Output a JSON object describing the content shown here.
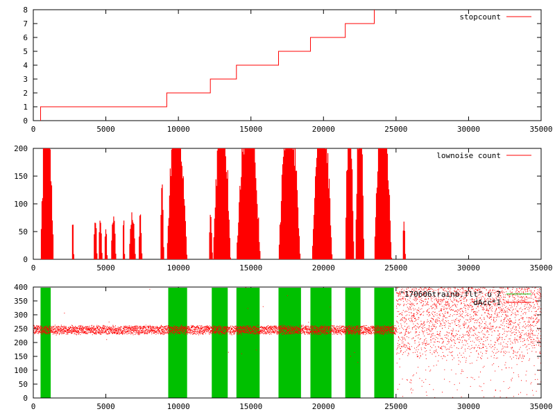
{
  "chart_data": [
    {
      "type": "line",
      "xlim": [
        0,
        35000
      ],
      "ylim": [
        0,
        8
      ],
      "xticks": [
        "0",
        "5000",
        "10000",
        "15000",
        "20000",
        "25000",
        "30000",
        "35000"
      ],
      "yticks": [
        "0",
        "1",
        "2",
        "3",
        "4",
        "5",
        "6",
        "7",
        "8"
      ],
      "legend_position": "top-right",
      "series": [
        {
          "name": "stopcount",
          "color": "#ff0000",
          "style": "step",
          "x": [
            500,
            500,
            9200,
            9200,
            12200,
            12200,
            14000,
            14000,
            16900,
            16900,
            19100,
            19100,
            21500,
            21500,
            23500,
            23500
          ],
          "y": [
            0,
            1,
            1,
            2,
            2,
            3,
            3,
            4,
            4,
            5,
            5,
            6,
            6,
            7,
            7,
            8
          ]
        }
      ]
    },
    {
      "type": "bar",
      "xlim": [
        0,
        35000
      ],
      "ylim": [
        0,
        200
      ],
      "xticks": [
        "0",
        "5000",
        "10000",
        "15000",
        "20000",
        "25000",
        "30000",
        "35000"
      ],
      "yticks": [
        "0",
        "50",
        "100",
        "150",
        "200"
      ],
      "legend_position": "top-right",
      "series": [
        {
          "name": "lownoise count",
          "color": "#ff0000",
          "spans": [
            {
              "x0": 500,
              "x1": 1400,
              "peak": 200
            },
            {
              "x0": 2650,
              "x1": 2800,
              "peak": 72
            },
            {
              "x0": 4150,
              "x1": 4400,
              "peak": 75
            },
            {
              "x0": 4500,
              "x1": 4750,
              "peak": 75
            },
            {
              "x0": 4900,
              "x1": 5100,
              "peak": 60
            },
            {
              "x0": 5350,
              "x1": 5700,
              "peak": 77
            },
            {
              "x0": 6150,
              "x1": 6300,
              "peak": 70
            },
            {
              "x0": 6600,
              "x1": 7050,
              "peak": 78
            },
            {
              "x0": 7250,
              "x1": 7500,
              "peak": 77
            },
            {
              "x0": 8750,
              "x1": 9000,
              "peak": 145
            },
            {
              "x0": 9200,
              "x1": 10600,
              "peak": 200
            },
            {
              "x0": 12100,
              "x1": 12350,
              "peak": 80
            },
            {
              "x0": 12400,
              "x1": 13600,
              "peak": 200
            },
            {
              "x0": 14000,
              "x1": 15650,
              "peak": 200
            },
            {
              "x0": 16900,
              "x1": 18400,
              "peak": 200
            },
            {
              "x0": 19200,
              "x1": 20600,
              "peak": 200
            },
            {
              "x0": 21500,
              "x1": 22100,
              "peak": 200
            },
            {
              "x0": 22200,
              "x1": 22800,
              "peak": 200
            },
            {
              "x0": 23500,
              "x1": 24700,
              "peak": 200
            },
            {
              "x0": 25450,
              "x1": 25650,
              "peak": 70
            }
          ]
        }
      ]
    },
    {
      "type": "scatter",
      "xlim": [
        0,
        35000
      ],
      "ylim": [
        0,
        400
      ],
      "xticks": [
        "0",
        "5000",
        "10000",
        "15000",
        "20000",
        "25000",
        "30000",
        "35000"
      ],
      "yticks": [
        "0",
        "50",
        "100",
        "150",
        "200",
        "250",
        "300",
        "350",
        "400"
      ],
      "legend_position": "top-right",
      "green_bands": [
        [
          500,
          1200
        ],
        [
          9300,
          10600
        ],
        [
          12300,
          13400
        ],
        [
          14000,
          15600
        ],
        [
          16900,
          18450
        ],
        [
          19100,
          20550
        ],
        [
          21500,
          22550
        ],
        [
          23500,
          24850
        ]
      ],
      "series": [
        {
          "name": "\"170606trainb.flt\" u 7",
          "color": "#00c000",
          "style": "bands"
        },
        {
          "name": "dAcc*1",
          "color": "#ff0000",
          "style": "dots",
          "baseline": 245,
          "spread_before": 10,
          "spread_after_from_x": 25000,
          "spread_after": [
            0,
            400
          ]
        }
      ]
    }
  ]
}
